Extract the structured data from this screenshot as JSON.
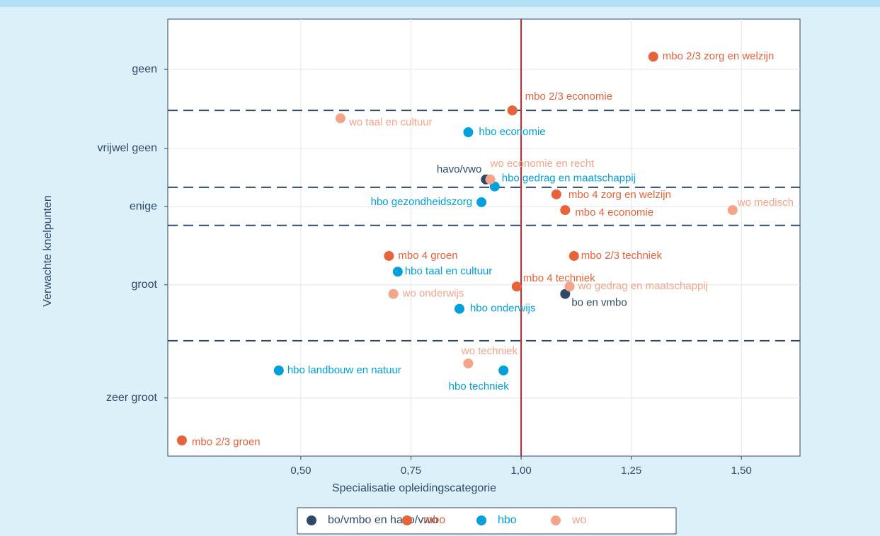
{
  "chart_data": {
    "type": "scatter",
    "x_label": "Specialisatie opleidingscategorie",
    "y_label": "Verwachte knelpunten",
    "xlim": [
      0.198,
      1.633
    ],
    "ylim": [
      0,
      10
    ],
    "xticks": [
      {
        "value": 0.5,
        "label": "0,50"
      },
      {
        "value": 0.75,
        "label": "0,75"
      },
      {
        "value": 1.0,
        "label": "1,00"
      },
      {
        "value": 1.25,
        "label": "1,25"
      },
      {
        "value": 1.5,
        "label": "1,50"
      }
    ],
    "yticks": [
      {
        "value": 8.85,
        "label": "geen"
      },
      {
        "value": 7.04,
        "label": "vrijwel geen"
      },
      {
        "value": 5.71,
        "label": "enige"
      },
      {
        "value": 3.92,
        "label": "groot"
      },
      {
        "value": 1.33,
        "label": "zeer groot"
      }
    ],
    "grid": true,
    "vline": 1.0,
    "vline_color": "#c0272d",
    "hlines": [
      7.91,
      6.15,
      5.28,
      2.64
    ],
    "hline_color": "#2d4a6b",
    "series": [
      {
        "name": "bo/vmbo en havo/vwo",
        "color": "#2d4a6b",
        "label_color": "#2d4a6b",
        "labels": [
          "havo/vwo",
          "bo en vmbo"
        ],
        "x": [
          0.92,
          1.1
        ],
        "values": [
          6.33,
          3.71
        ]
      },
      {
        "name": "mbo",
        "color": "#e8623a",
        "label_color": "#e8623a",
        "labels": [
          "mbo 2/3 zorg en welzijn",
          "mbo 2/3 economie",
          "mbo 4 zorg en welzijn",
          "mbo 4 economie",
          "mbo 4 groen",
          "mbo 2/3 techniek",
          "mbo 4 techniek",
          "mbo 2/3 groen"
        ],
        "x": [
          1.3,
          0.98,
          1.08,
          1.1,
          0.7,
          1.12,
          0.99,
          0.23
        ],
        "values": [
          9.14,
          7.91,
          5.99,
          5.63,
          4.58,
          4.58,
          3.88,
          0.36
        ]
      },
      {
        "name": "hbo",
        "color": "#00a0dd",
        "label_color": "#00a0dd",
        "labels": [
          "hbo economie",
          "hbo gedrag en maatschappij",
          "hbo gezondheidszorg",
          "hbo taal en cultuur",
          "hbo onderwijs",
          "hbo landbouw en natuur",
          "hbo techniek"
        ],
        "x": [
          0.88,
          0.94,
          0.91,
          0.72,
          0.86,
          0.45,
          0.96
        ],
        "values": [
          7.41,
          6.17,
          5.81,
          4.22,
          3.37,
          1.96,
          1.96
        ]
      },
      {
        "name": "wo",
        "color": "#f5a48a",
        "label_color": "#f5a48a",
        "labels": [
          "wo taal en cultuur",
          "wo economie en recht",
          "wo medisch",
          "wo gedrag en maatschappij",
          "wo onderwijs",
          "wo techniek"
        ],
        "x": [
          0.59,
          0.93,
          1.48,
          1.11,
          0.71,
          0.88
        ],
        "values": [
          7.73,
          6.33,
          5.63,
          3.88,
          3.71,
          2.12
        ]
      }
    ]
  }
}
